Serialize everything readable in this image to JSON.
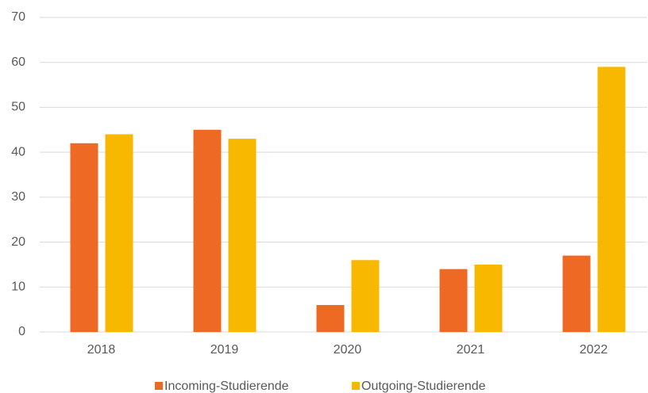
{
  "chart_data": {
    "type": "bar",
    "categories": [
      "2018",
      "2019",
      "2020",
      "2021",
      "2022"
    ],
    "series": [
      {
        "name": "Incoming-Studierende",
        "color": "#ee6a24",
        "values": [
          42,
          45,
          6,
          14,
          17
        ]
      },
      {
        "name": "Outgoing-Studierende",
        "color": "#f9b800",
        "values": [
          44,
          43,
          16,
          15,
          59
        ]
      }
    ],
    "ylim": [
      0,
      70
    ],
    "yticks": [
      0,
      10,
      20,
      30,
      40,
      50,
      60,
      70
    ],
    "grid": true,
    "legend": "bottom"
  }
}
